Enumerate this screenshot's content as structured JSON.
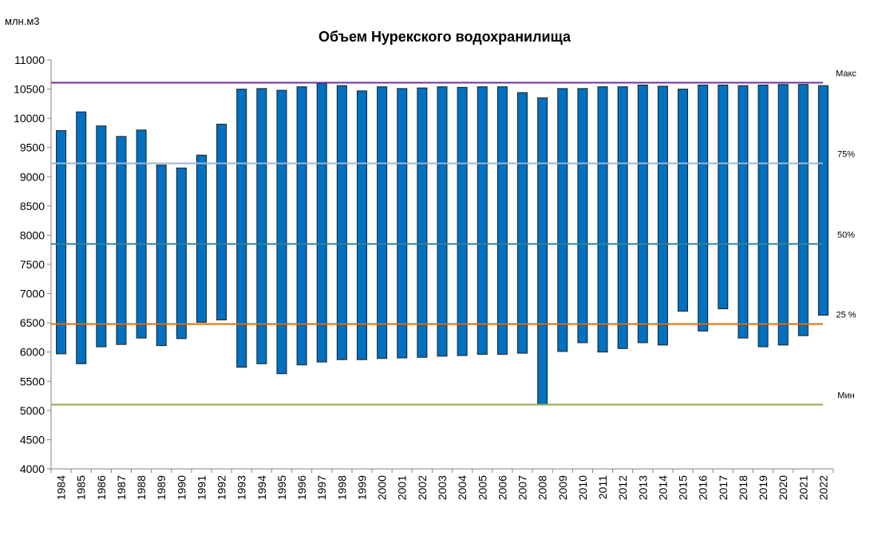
{
  "chart_data": {
    "type": "bar",
    "subtype": "floating-range",
    "title": "Объем Нурекского водохранилища",
    "ylabel": "млн.м3",
    "xlabel": "",
    "ylim": [
      4000,
      11000
    ],
    "yticks": [
      4000,
      4500,
      5000,
      5500,
      6000,
      6500,
      7000,
      7500,
      8000,
      8500,
      9000,
      9500,
      10000,
      10500,
      11000
    ],
    "grid": false,
    "categories": [
      "1984",
      "1985",
      "1986",
      "1987",
      "1988",
      "1989",
      "1990",
      "1991",
      "1992",
      "1993",
      "1994",
      "1995",
      "1996",
      "1997",
      "1998",
      "1999",
      "2000",
      "2001",
      "2002",
      "2003",
      "2004",
      "2005",
      "2006",
      "2007",
      "2008",
      "2009",
      "2010",
      "2011",
      "2012",
      "2013",
      "2014",
      "2015",
      "2016",
      "2017",
      "2018",
      "2019",
      "2020",
      "2021",
      "2022"
    ],
    "series": [
      {
        "color": "#0070c0",
        "low": [
          5970,
          5800,
          6090,
          6130,
          6240,
          6110,
          6230,
          6510,
          6550,
          5740,
          5800,
          5630,
          5780,
          5830,
          5870,
          5870,
          5890,
          5900,
          5910,
          5930,
          5940,
          5960,
          5960,
          5980,
          5100,
          6010,
          6160,
          6000,
          6060,
          6160,
          6120,
          6700,
          6360,
          6740,
          6240,
          6090,
          6120,
          6280,
          6630
        ],
        "high": [
          9790,
          10110,
          9870,
          9690,
          9800,
          9200,
          9150,
          9370,
          9900,
          10500,
          10510,
          10480,
          10540,
          10600,
          10560,
          10470,
          10540,
          10510,
          10520,
          10540,
          10530,
          10540,
          10540,
          10440,
          10350,
          10510,
          10510,
          10540,
          10540,
          10570,
          10550,
          10500,
          10570,
          10570,
          10560,
          10570,
          10580,
          10580,
          10560
        ]
      }
    ],
    "reference_lines": [
      {
        "label": "Макс",
        "value": 10610,
        "color": "#7030a0"
      },
      {
        "label": "75%",
        "value": 9230,
        "color": "#9bb7d4"
      },
      {
        "label": "50%",
        "value": 7850,
        "color": "#31849b"
      },
      {
        "label": "25 %",
        "value": 6480,
        "color": "#e36c09"
      },
      {
        "label": "Мин",
        "value": 5100,
        "color": "#8faa4c"
      }
    ]
  }
}
